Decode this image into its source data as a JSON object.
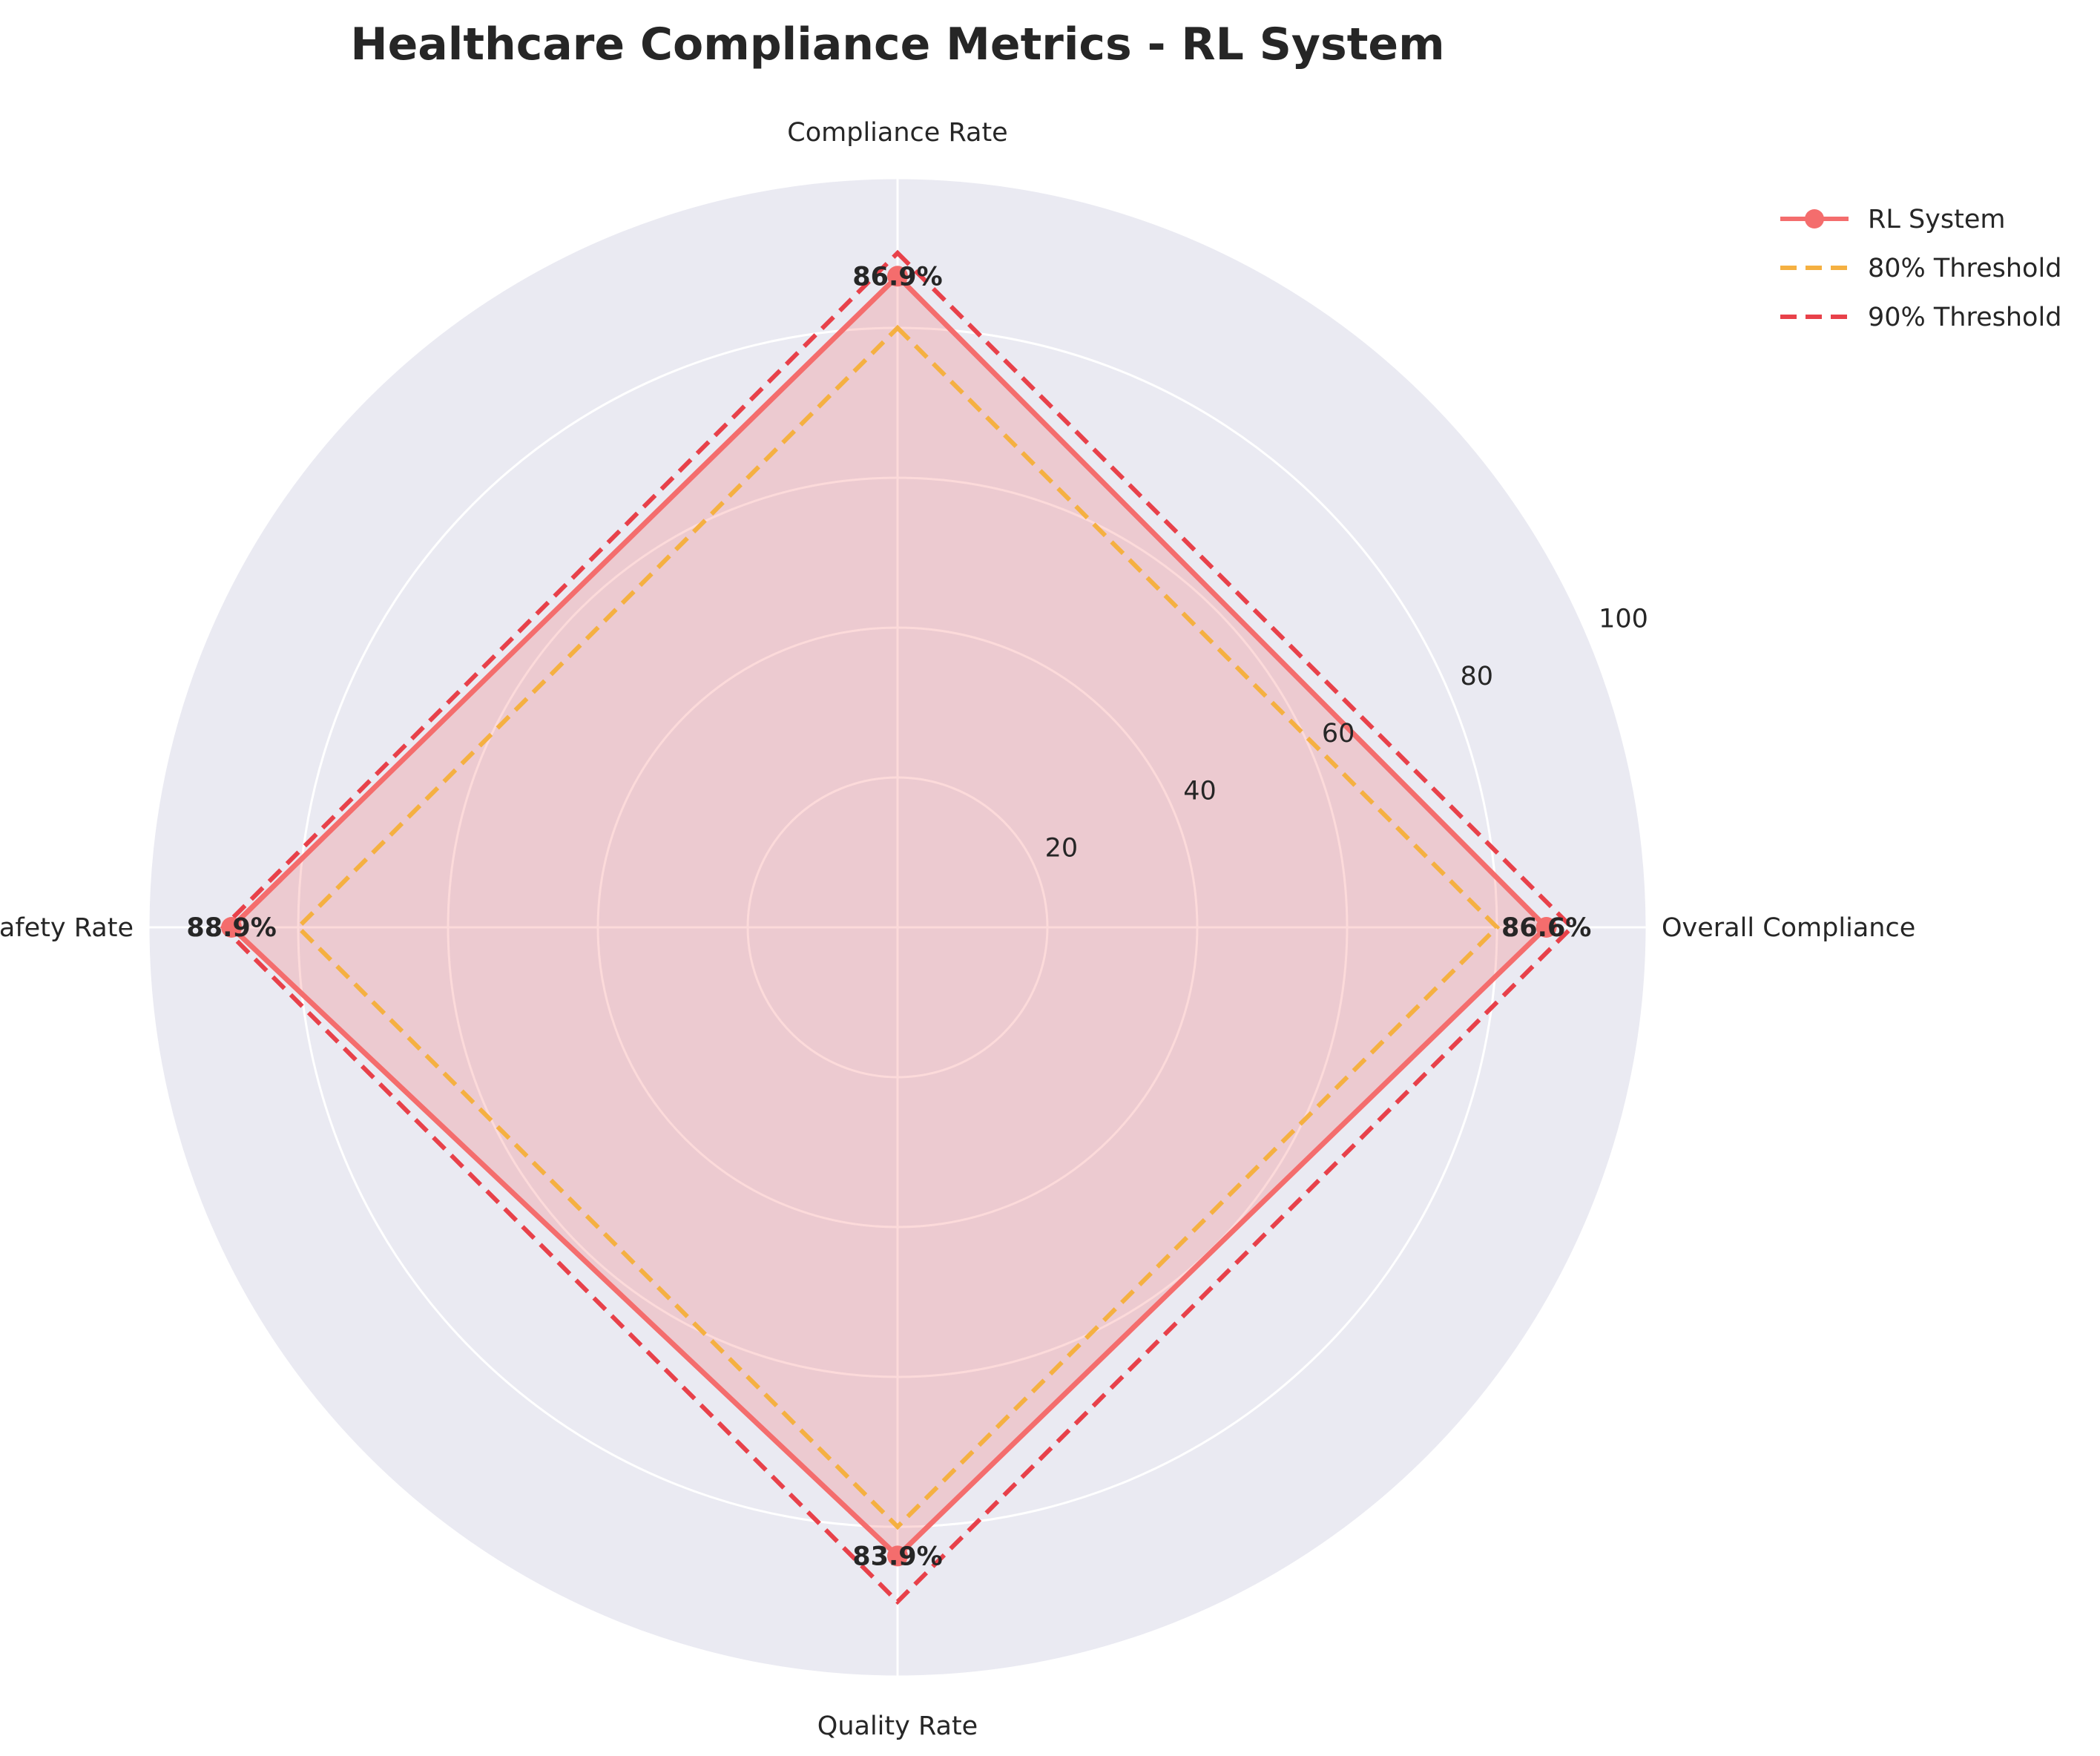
{
  "chart_data": {
    "type": "radar",
    "title": "Healthcare Compliance Metrics - RL System",
    "categories": [
      "Compliance Rate",
      "Overall Compliance",
      "Quality Rate",
      "Safety Rate"
    ],
    "rlim": [
      0,
      100
    ],
    "radial_ticks": [
      20,
      40,
      60,
      80,
      100
    ],
    "grid": true,
    "legend_position": "top-right",
    "series": [
      {
        "name": "RL System",
        "values": [
          86.9,
          86.6,
          83.9,
          88.9
        ],
        "labels": [
          "86.9%",
          "86.6%",
          "83.9%",
          "88.9%"
        ],
        "color": "#f46d6d",
        "style": "solid",
        "marker": "circle",
        "fill": true
      },
      {
        "name": "80% Threshold",
        "values": [
          80,
          80,
          80,
          80
        ],
        "color": "#f5b041",
        "style": "dashed"
      },
      {
        "name": "90% Threshold",
        "values": [
          90,
          90,
          90,
          90
        ],
        "color": "#e8414a",
        "style": "dashed"
      }
    ],
    "colors": {
      "background": "#eaeaf2",
      "grid": "#ffffff",
      "fill": "#f2b6c4"
    }
  }
}
